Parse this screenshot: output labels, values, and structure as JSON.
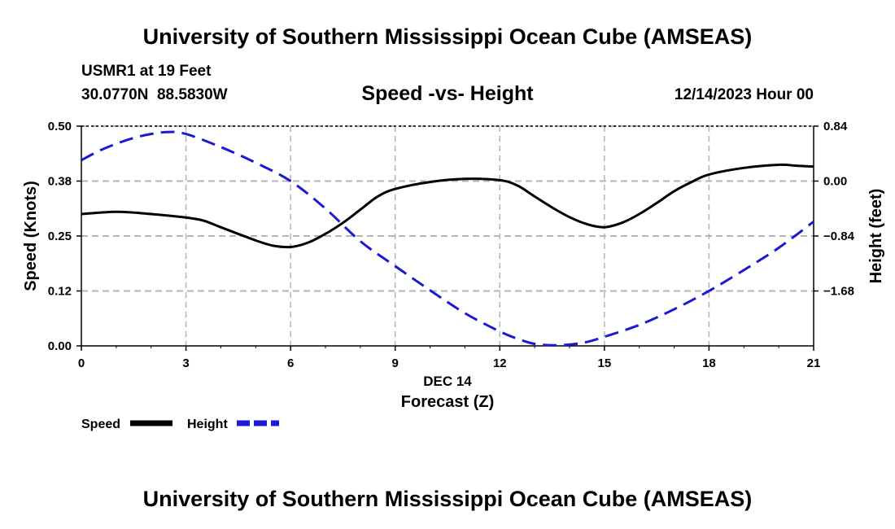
{
  "page": {
    "title_top": "University of Southern Mississippi Ocean Cube (AMSEAS)",
    "title_bottom": "University of Southern Mississippi Ocean Cube (AMSEAS)",
    "station": "USMR1 at 19 Feet",
    "coords": "30.0770N  88.5830W",
    "datetime": "12/14/2023 Hour 00"
  },
  "colors": {
    "speed": "#000000",
    "height": "#1a1ad6",
    "grid": "#b4b4b4"
  },
  "chart_data": {
    "type": "line",
    "title": "Speed -vs- Height",
    "xlabel": "Forecast (Z)",
    "xlabel_date": "DEC 14",
    "ylabel": "Speed (Knots)",
    "y2label": "Height (feet)",
    "xlim": [
      0,
      21
    ],
    "ylim": [
      0,
      0.5
    ],
    "y2lim": [
      -2.52,
      0.84
    ],
    "x_ticks": [
      0,
      3,
      6,
      9,
      12,
      15,
      18,
      21
    ],
    "x_tick_labels": [
      "0",
      "3",
      "6",
      "9",
      "12",
      "15",
      "18",
      "21"
    ],
    "y_ticks": [
      0,
      0.125,
      0.25,
      0.375,
      0.5
    ],
    "y_tick_labels": [
      "0.00",
      "0.12",
      "0.25",
      "0.38",
      "0.50"
    ],
    "y2_ticks": [
      0.84,
      0.0,
      -0.84,
      -1.68
    ],
    "y2_tick_labels": [
      "0.84",
      "0.00",
      "−0.84",
      "−1.68"
    ],
    "grid": true,
    "legend_position": "bottom-left",
    "series": [
      {
        "name": "Speed",
        "axis": "left",
        "style": "solid",
        "x": [
          0,
          1,
          2,
          3,
          3.5,
          4,
          5,
          5.5,
          6,
          6.5,
          7,
          7.5,
          8,
          8.5,
          9,
          10,
          11,
          12,
          12.5,
          13,
          13.5,
          14,
          14.5,
          15,
          15.5,
          16,
          16.5,
          17,
          17.5,
          18,
          19,
          20,
          20.5,
          21
        ],
        "values": [
          0.3,
          0.305,
          0.3,
          0.292,
          0.285,
          0.27,
          0.24,
          0.228,
          0.225,
          0.235,
          0.255,
          0.28,
          0.31,
          0.34,
          0.357,
          0.373,
          0.38,
          0.377,
          0.365,
          0.34,
          0.315,
          0.293,
          0.277,
          0.27,
          0.28,
          0.3,
          0.325,
          0.352,
          0.373,
          0.39,
          0.405,
          0.412,
          0.41,
          0.408
        ]
      },
      {
        "name": "Height",
        "axis": "right",
        "style": "dashed",
        "x": [
          0,
          0.5,
          1,
          1.5,
          2,
          2.5,
          3,
          4,
          5,
          6,
          7,
          8,
          9,
          10,
          11,
          12,
          12.5,
          13,
          13.5,
          14,
          14.5,
          15,
          16,
          17,
          18,
          19,
          20,
          21
        ],
        "values": [
          0.32,
          0.46,
          0.57,
          0.66,
          0.72,
          0.75,
          0.72,
          0.52,
          0.28,
          0.0,
          -0.42,
          -0.92,
          -1.3,
          -1.67,
          -2.02,
          -2.3,
          -2.41,
          -2.49,
          -2.51,
          -2.5,
          -2.46,
          -2.38,
          -2.2,
          -1.96,
          -1.68,
          -1.36,
          -1.02,
          -0.62
        ]
      }
    ]
  }
}
